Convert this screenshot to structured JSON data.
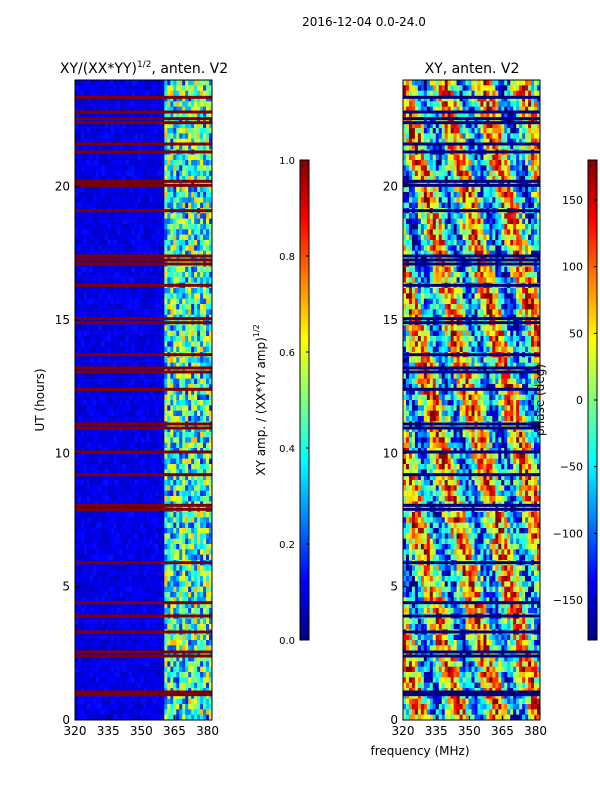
{
  "figure": {
    "suptitle": "2016-12-04 0.0-24.0",
    "shared_xlabel": "frequency (MHz)"
  },
  "chart_data": [
    {
      "type": "heatmap",
      "title_text": "XY/(XX*YY)",
      "title_superscript": "1/2",
      "title_suffix": ", anten. V2",
      "xlabel": "",
      "ylabel": "UT (hours)",
      "xlim": [
        320,
        382
      ],
      "ylim": [
        0,
        24
      ],
      "xticks": [
        320,
        335,
        350,
        365,
        380
      ],
      "xticklabels": [
        "320",
        "335",
        "350",
        "365",
        "380"
      ],
      "yticks": [
        0,
        5,
        10,
        15,
        20
      ],
      "yticklabels": [
        "0",
        "5",
        "10",
        "15",
        "20"
      ],
      "colormap": "jet",
      "colorbar": {
        "label_text": "XY amp. / (XX*YY amp)",
        "label_superscript": "1/2",
        "range": [
          0.0,
          1.0
        ],
        "ticks": [
          0.0,
          0.2,
          0.4,
          0.6,
          0.8,
          1.0
        ],
        "ticklabels": [
          "0.0",
          "0.2",
          "0.4",
          "0.6",
          "0.8",
          "1.0"
        ]
      },
      "flagged_hours": [
        0.95,
        1.05,
        2.4,
        2.55,
        3.3,
        3.9,
        4.4,
        5.9,
        7.9,
        8.05,
        9.2,
        10.05,
        10.95,
        11.1,
        12.4,
        13.05,
        13.2,
        13.7,
        14.9,
        15.05,
        16.3,
        17.1,
        17.25,
        17.4,
        19.1,
        20.05,
        20.2,
        21.3,
        21.6,
        22.4,
        22.55,
        22.8,
        23.35
      ],
      "band_region_mhz": [
        360,
        382
      ],
      "band_mean_value": 0.42,
      "background_value": 0.06
    },
    {
      "type": "heatmap",
      "title": "XY, anten. V2",
      "xlabel": "frequency (MHz)",
      "ylabel": "",
      "xlim": [
        320,
        382
      ],
      "ylim": [
        0,
        24
      ],
      "xticks": [
        320,
        335,
        350,
        365,
        380
      ],
      "xticklabels": [
        "320",
        "335",
        "350",
        "365",
        "380"
      ],
      "yticks": [
        0,
        5,
        10,
        15,
        20
      ],
      "yticklabels": [
        "0",
        "5",
        "10",
        "15",
        "20"
      ],
      "colormap": "jet",
      "colorbar": {
        "label": "phase (deg)",
        "range": [
          -180,
          180
        ],
        "ticks": [
          -150,
          -100,
          -50,
          0,
          50,
          100,
          150
        ],
        "ticklabels": [
          "−150",
          "−100",
          "−50",
          "0",
          "50",
          "100",
          "150"
        ]
      },
      "flagged_hours": [
        0.95,
        1.05,
        2.4,
        2.55,
        3.3,
        3.9,
        4.4,
        5.9,
        7.9,
        8.05,
        9.2,
        10.05,
        10.95,
        11.1,
        12.4,
        13.05,
        13.2,
        13.7,
        14.9,
        15.05,
        16.3,
        17.1,
        17.25,
        17.4,
        19.1,
        20.05,
        20.2,
        21.3,
        21.6,
        22.4,
        22.55,
        22.8,
        23.35
      ]
    }
  ]
}
